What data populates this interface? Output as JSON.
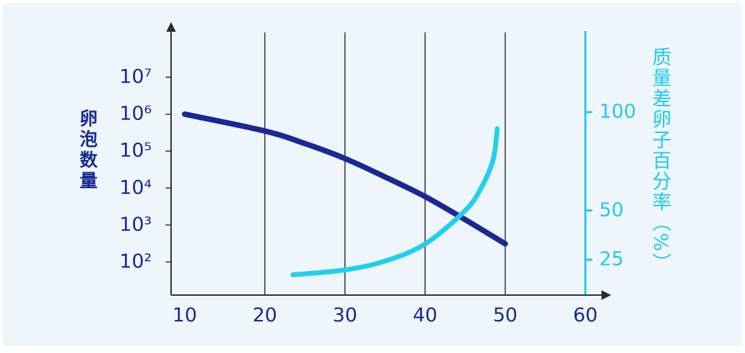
{
  "chart_data": {
    "type": "line",
    "y_label": "卵泡数量",
    "y2_label": "质量差卵子百分率（%）",
    "xlim": [
      8.3,
      61.5
    ],
    "xticks": [
      10,
      20,
      30,
      40,
      50,
      60
    ],
    "ylim": [
      12.7,
      220000000
    ],
    "y_scale": "log",
    "yticks": [
      {
        "value": 100,
        "label": "10²"
      },
      {
        "value": 1000,
        "label": "10³"
      },
      {
        "value": 10000,
        "label": "10⁴"
      },
      {
        "value": 100000,
        "label": "10⁵"
      },
      {
        "value": 1000000,
        "label": "10⁶"
      },
      {
        "value": 10000000,
        "label": "10⁷"
      }
    ],
    "y2lim": [
      7,
      143
    ],
    "y2ticks": [
      25,
      50,
      100
    ],
    "grid": true,
    "axis_color": "#1b2a8f",
    "y2_axis_color": "#22cbe6",
    "series": [
      {
        "name": "卵泡数量",
        "color": "#1a2896",
        "axis": "y",
        "x": [
          10,
          20,
          25,
          30,
          35,
          40,
          45,
          50
        ],
        "values": [
          1000000,
          350000,
          160000,
          63000,
          20000,
          5900,
          1400,
          310
        ]
      },
      {
        "name": "质量差卵子百分率",
        "color": "#21cfee",
        "axis": "y2",
        "x": [
          23.5,
          30,
          35,
          40,
          45,
          47,
          48.5,
          49
        ],
        "values": [
          17.3,
          19.8,
          24.3,
          33,
          50,
          61.5,
          76,
          91.6
        ]
      }
    ]
  }
}
